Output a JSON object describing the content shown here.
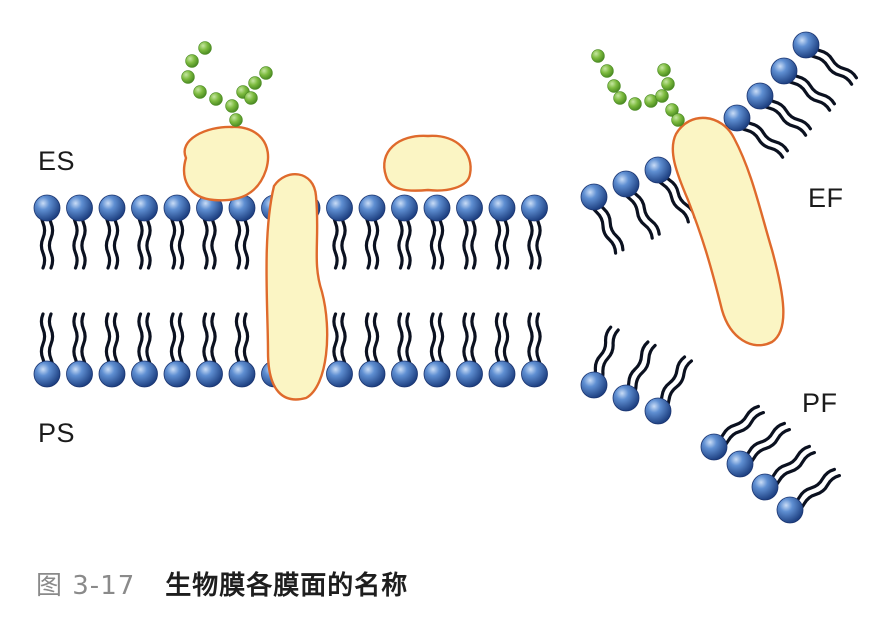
{
  "labels": {
    "es": "ES",
    "ps": "PS",
    "ef": "EF",
    "pf": "PF"
  },
  "caption": {
    "number": "图 3-17",
    "title": "生物膜各膜面的名称"
  },
  "colors": {
    "lipid_head": "#2f5ea8",
    "lipid_tail": "#0b1120",
    "protein_fill": "#fbf5c4",
    "protein_outline": "#df6a2c",
    "glycan": "#7dbb3f"
  }
}
